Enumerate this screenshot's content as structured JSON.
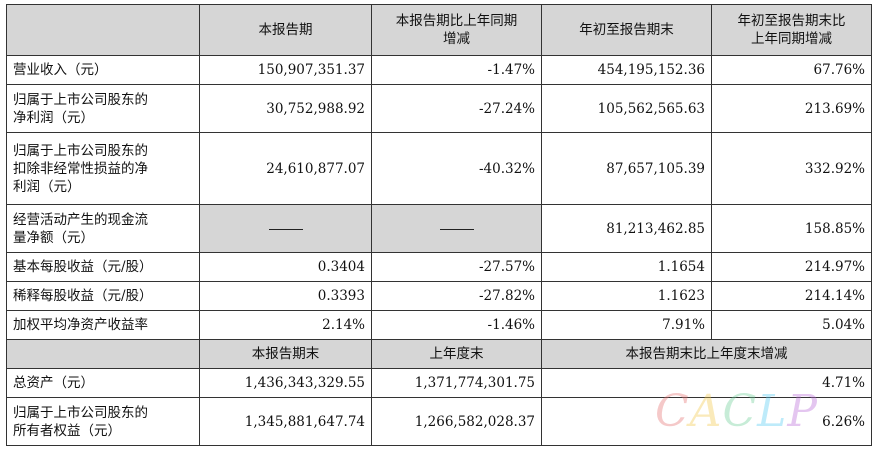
{
  "header": [
    "",
    "本报告期",
    "本报告期比上年同期\n增减",
    "年初至报告期末",
    "年初至报告期末比\n上年同期增减"
  ],
  "rows": [
    {
      "label": "营业收入（元）",
      "current": "150,907,351.37",
      "current_change": "-1.47%",
      "ytd": "454,195,152.36",
      "ytd_change": "67.76%"
    },
    {
      "label": "归属于上市公司股东的\n净利润（元）",
      "current": "30,752,988.92",
      "current_change": "-27.24%",
      "ytd": "105,562,565.63",
      "ytd_change": "213.69%"
    },
    {
      "label": "归属于上市公司股东的\n扣除非经常性损益的净\n利润（元）",
      "current": "24,610,877.07",
      "current_change": "-40.32%",
      "ytd": "87,657,105.39",
      "ytd_change": "332.92%"
    },
    {
      "label": "经营活动产生的现金流\n量净额（元）",
      "current": "",
      "current_change": "",
      "ytd": "81,213,462.85",
      "ytd_change": "158.85%"
    },
    {
      "label": "基本每股收益（元/股）",
      "current": "0.3404",
      "current_change": "-27.57%",
      "ytd": "1.1654",
      "ytd_change": "214.97%"
    },
    {
      "label": "稀释每股收益（元/股）",
      "current": "0.3393",
      "current_change": "-27.82%",
      "ytd": "1.1623",
      "ytd_change": "214.14%"
    },
    {
      "label": "加权平均净资产收益率",
      "current": "2.14%",
      "current_change": "-1.46%",
      "ytd": "7.91%",
      "ytd_change": "5.04%"
    }
  ],
  "header2": [
    "",
    "本报告期末",
    "上年度末",
    "本报告期末比上年度末增减"
  ],
  "rows2": [
    {
      "label": "总资产（元）",
      "period_end": "1,436,343,329.55",
      "prior_year_end": "1,371,774,301.75",
      "change": "4.71%"
    },
    {
      "label": "归属于上市公司股东的\n所有者权益（元）",
      "period_end": "1,345,881,647.74",
      "prior_year_end": "1,266,582,028.37",
      "change": "6.26%"
    }
  ],
  "watermark": [
    "C",
    "A",
    "C",
    "L",
    "P"
  ]
}
